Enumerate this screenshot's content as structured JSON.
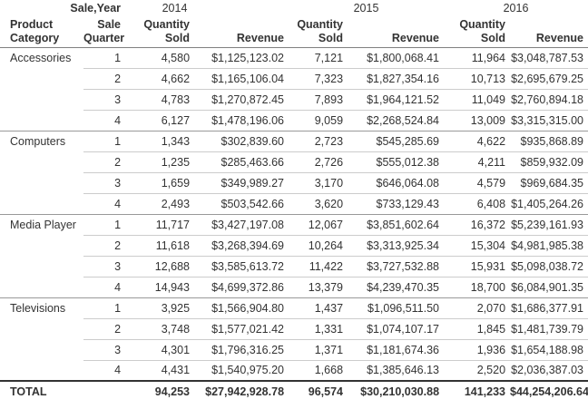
{
  "header": {
    "column_dimension_label": "Sale,Year",
    "row_dimension_label": "Product\nCategory",
    "quarter_label": "Sale\nQuarter",
    "quantity_label": "Quantity\nSold",
    "revenue_label": "Revenue"
  },
  "colors": {
    "text": "#333333",
    "background": "#ffffff",
    "row_divider": "#cccccc",
    "group_divider": "#999999",
    "header_divider": "#808080",
    "total_divider": "#333333"
  },
  "chart_data": {
    "type": "table",
    "title": "",
    "column_dimension": "Sale,Year",
    "row_dimensions": [
      "Product Category",
      "Sale Quarter"
    ],
    "years": [
      "2014",
      "2015",
      "2016"
    ],
    "measures_per_year": [
      "Quantity Sold",
      "Revenue"
    ],
    "rows": [
      [
        "Accessories",
        "1",
        "4,580",
        "$1,125,123.02",
        "7,121",
        "$1,800,068.41",
        "11,964",
        "$3,048,787.53"
      ],
      [
        "",
        "2",
        "4,662",
        "$1,165,106.04",
        "7,323",
        "$1,827,354.16",
        "10,713",
        "$2,695,679.25"
      ],
      [
        "",
        "3",
        "4,783",
        "$1,270,872.45",
        "7,893",
        "$1,964,121.52",
        "11,049",
        "$2,760,894.18"
      ],
      [
        "",
        "4",
        "6,127",
        "$1,478,196.06",
        "9,059",
        "$2,268,524.84",
        "13,009",
        "$3,315,315.00"
      ],
      [
        "Computers",
        "1",
        "1,343",
        "$302,839.60",
        "2,723",
        "$545,285.69",
        "4,622",
        "$935,868.89"
      ],
      [
        "",
        "2",
        "1,235",
        "$285,463.66",
        "2,726",
        "$555,012.38",
        "4,211",
        "$859,932.09"
      ],
      [
        "",
        "3",
        "1,659",
        "$349,989.27",
        "3,170",
        "$646,064.08",
        "4,579",
        "$969,684.35"
      ],
      [
        "",
        "4",
        "2,493",
        "$503,542.66",
        "3,620",
        "$733,129.43",
        "6,408",
        "$1,405,264.26"
      ],
      [
        "Media Player",
        "1",
        "11,717",
        "$3,427,197.08",
        "12,067",
        "$3,851,602.64",
        "16,372",
        "$5,239,161.93"
      ],
      [
        "",
        "2",
        "11,618",
        "$3,268,394.69",
        "10,264",
        "$3,313,925.34",
        "15,304",
        "$4,981,985.38"
      ],
      [
        "",
        "3",
        "12,688",
        "$3,585,613.72",
        "11,422",
        "$3,727,532.88",
        "15,931",
        "$5,098,038.72"
      ],
      [
        "",
        "4",
        "14,943",
        "$4,699,372.86",
        "13,379",
        "$4,239,470.35",
        "18,700",
        "$6,084,901.35"
      ],
      [
        "Televisions",
        "1",
        "3,925",
        "$1,566,904.80",
        "1,437",
        "$1,096,511.50",
        "2,070",
        "$1,686,377.91"
      ],
      [
        "",
        "2",
        "3,748",
        "$1,577,021.42",
        "1,331",
        "$1,074,107.17",
        "1,845",
        "$1,481,739.79"
      ],
      [
        "",
        "3",
        "4,301",
        "$1,796,316.25",
        "1,371",
        "$1,181,674.36",
        "1,936",
        "$1,654,188.98"
      ],
      [
        "",
        "4",
        "4,431",
        "$1,540,975.20",
        "1,668",
        "$1,385,646.13",
        "2,520",
        "$2,036,387.03"
      ]
    ],
    "total": [
      "TOTAL",
      "",
      "94,253",
      "$27,942,928.78",
      "96,574",
      "$30,210,030.88",
      "141,233",
      "$44,254,206.64"
    ]
  }
}
